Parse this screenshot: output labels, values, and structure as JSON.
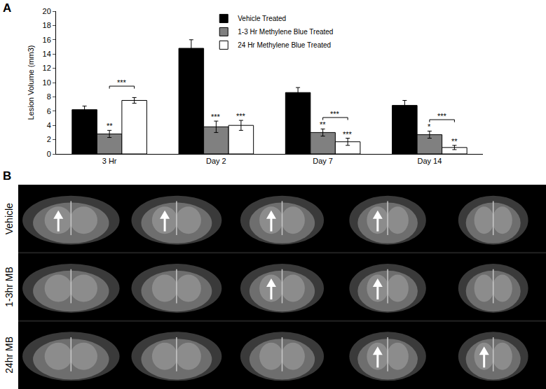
{
  "chart_data": {
    "type": "bar",
    "panel_label": "A",
    "categories": [
      "3 Hr",
      "Day 2",
      "Day 7",
      "Day 14"
    ],
    "y_label": "Lesion Volume (mm3)",
    "ylim": [
      0,
      20
    ],
    "yticks": [
      0,
      2,
      4,
      6,
      8,
      10,
      12,
      14,
      16,
      18,
      20
    ],
    "legend": "top",
    "series": [
      {
        "name": "Vehicle Treated",
        "color": "#000000",
        "values": [
          6.2,
          14.8,
          8.6,
          6.8
        ],
        "errors": [
          0.5,
          1.2,
          0.7,
          0.7
        ]
      },
      {
        "name": "1-3 Hr Methylene Blue Treated",
        "color": "#808080",
        "values": [
          2.8,
          3.8,
          3.0,
          2.7
        ],
        "errors": [
          0.5,
          0.8,
          0.5,
          0.5
        ],
        "significance": [
          "**",
          "***",
          "**",
          "*"
        ]
      },
      {
        "name": "24 Hr Methylene Blue Treated",
        "color": "#ffffff",
        "values": [
          7.5,
          4.0,
          1.7,
          0.9
        ],
        "errors": [
          0.4,
          0.7,
          0.5,
          0.3
        ],
        "significance": [
          null,
          "***",
          "***",
          "**"
        ]
      }
    ],
    "brackets": [
      {
        "category": "3 Hr",
        "series": [
          "1-3 Hr Methylene Blue Treated",
          "24 Hr Methylene Blue Treated"
        ],
        "text": "***"
      },
      {
        "category": "Day 7",
        "series": [
          "1-3 Hr Methylene Blue Treated",
          "24 Hr Methylene Blue Treated"
        ],
        "text": "***"
      },
      {
        "category": "Day 14",
        "series": [
          "1-3 Hr Methylene Blue Treated",
          "24 Hr Methylene Blue Treated"
        ],
        "text": "***"
      }
    ]
  },
  "image_panel": {
    "panel_label": "B",
    "rows": [
      {
        "label": "Vehicle",
        "arrows": [
          true,
          true,
          true,
          true,
          false
        ]
      },
      {
        "label": "1-3hr MB",
        "arrows": [
          false,
          false,
          true,
          true,
          false
        ]
      },
      {
        "label": "24hr MB",
        "arrows": [
          false,
          false,
          false,
          true,
          true
        ]
      }
    ]
  }
}
